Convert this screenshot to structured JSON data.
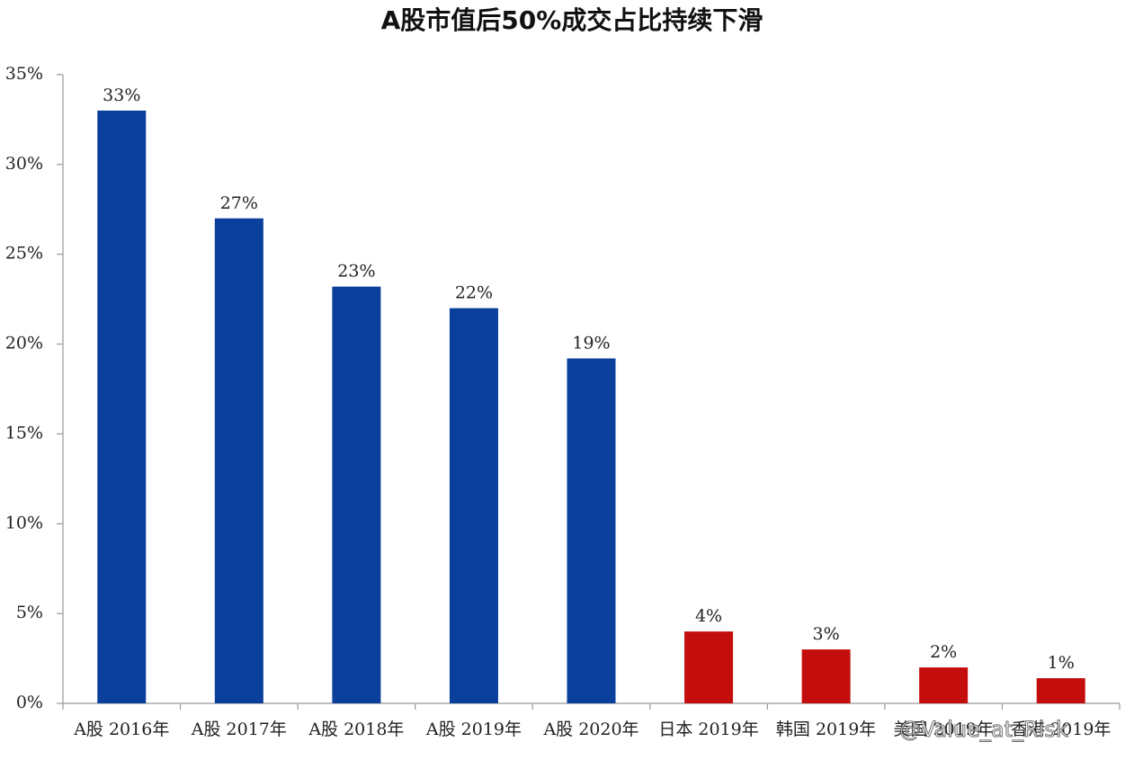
{
  "chart_data": {
    "type": "bar",
    "title": "A股市值后50%成交占比持续下滑",
    "categories": [
      "A股 2016年",
      "A股 2017年",
      "A股 2018年",
      "A股 2019年",
      "A股 2020年",
      "日本 2019年",
      "韩国 2019年",
      "美国 2019年",
      "香港 2019年"
    ],
    "values": [
      33,
      27,
      23.2,
      22,
      19.2,
      4,
      3,
      2,
      1.4
    ],
    "value_labels": [
      "33%",
      "27%",
      "23%",
      "22%",
      "19%",
      "4%",
      "3%",
      "2%",
      "1%"
    ],
    "colors": [
      "#0b3f9c",
      "#0b3f9c",
      "#0b3f9c",
      "#0b3f9c",
      "#0b3f9c",
      "#c40d0d",
      "#c40d0d",
      "#c40d0d",
      "#c40d0d"
    ],
    "ylim": [
      0,
      35
    ],
    "yticks": [
      {
        "value": 0,
        "label": "0%"
      },
      {
        "value": 5,
        "label": "5%"
      },
      {
        "value": 10,
        "label": "10%"
      },
      {
        "value": 15,
        "label": "15%"
      },
      {
        "value": 20,
        "label": "20%"
      },
      {
        "value": 25,
        "label": "25%"
      },
      {
        "value": 30,
        "label": "30%"
      },
      {
        "value": 35,
        "label": "35%"
      }
    ],
    "grid": false,
    "watermark": "@Value_at_Risk"
  }
}
